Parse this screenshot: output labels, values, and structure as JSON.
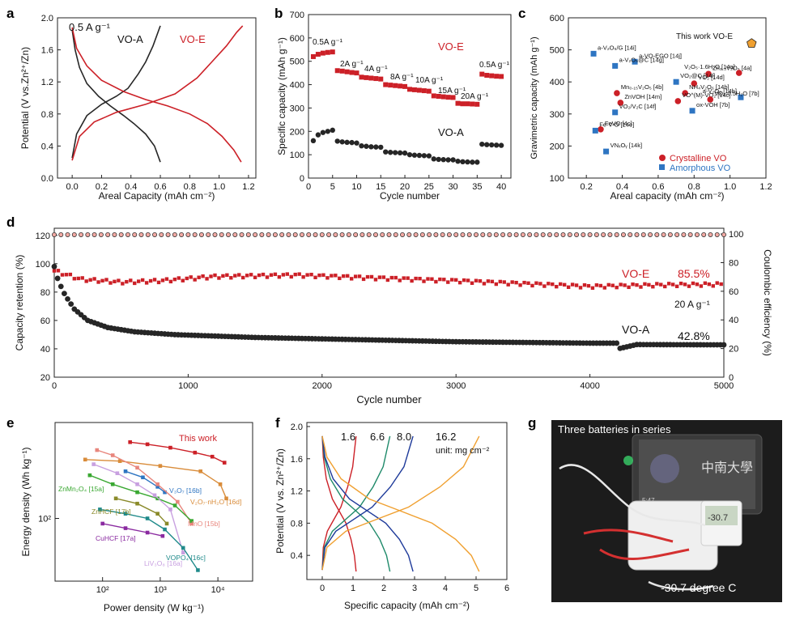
{
  "colors": {
    "red": "#cc2027",
    "black": "#262626",
    "blue": "#2e75c2",
    "pink": "#e8867d",
    "orange": "#f0a030"
  },
  "panels": {
    "a": "a",
    "b": "b",
    "c": "c",
    "d": "d",
    "e": "e",
    "f": "f",
    "g": "g"
  },
  "chart_data": [
    {
      "id": "a",
      "type": "line",
      "xlabel": "Areal Capacity (mAh cm⁻²)",
      "ylabel": "Potential (V vs.Zn²⁺/Zn)",
      "xlim": [
        -0.1,
        1.25
      ],
      "ylim": [
        0.0,
        2.0
      ],
      "xticks": [
        "0.0",
        "0.2",
        "0.4",
        "0.6",
        "0.8",
        "1.0",
        "1.2"
      ],
      "yticks": [
        "0.0",
        "0.4",
        "0.8",
        "1.2",
        "1.6",
        "2.0"
      ],
      "annotation": "0.5 A g⁻¹",
      "series": [
        {
          "name": "VO-A",
          "color": "#262626",
          "charge": [
            [
              0,
              0.25
            ],
            [
              0.03,
              0.55
            ],
            [
              0.1,
              0.78
            ],
            [
              0.2,
              0.92
            ],
            [
              0.3,
              1.02
            ],
            [
              0.38,
              1.12
            ],
            [
              0.45,
              1.3
            ],
            [
              0.5,
              1.45
            ],
            [
              0.55,
              1.65
            ],
            [
              0.6,
              1.9
            ]
          ],
          "discharge": [
            [
              0,
              1.85
            ],
            [
              0.02,
              1.6
            ],
            [
              0.05,
              1.38
            ],
            [
              0.1,
              1.18
            ],
            [
              0.18,
              1.02
            ],
            [
              0.26,
              0.9
            ],
            [
              0.35,
              0.78
            ],
            [
              0.42,
              0.68
            ],
            [
              0.5,
              0.55
            ],
            [
              0.56,
              0.4
            ],
            [
              0.6,
              0.2
            ]
          ]
        },
        {
          "name": "VO-E",
          "color": "#cc2027",
          "charge": [
            [
              0,
              0.22
            ],
            [
              0.05,
              0.52
            ],
            [
              0.15,
              0.7
            ],
            [
              0.3,
              0.82
            ],
            [
              0.5,
              0.92
            ],
            [
              0.7,
              1.05
            ],
            [
              0.85,
              1.25
            ],
            [
              0.95,
              1.45
            ],
            [
              1.05,
              1.65
            ],
            [
              1.12,
              1.82
            ],
            [
              1.16,
              1.9
            ]
          ],
          "discharge": [
            [
              0,
              1.88
            ],
            [
              0.03,
              1.62
            ],
            [
              0.1,
              1.4
            ],
            [
              0.2,
              1.22
            ],
            [
              0.35,
              1.08
            ],
            [
              0.5,
              0.98
            ],
            [
              0.65,
              0.9
            ],
            [
              0.8,
              0.8
            ],
            [
              0.92,
              0.68
            ],
            [
              1.02,
              0.52
            ],
            [
              1.1,
              0.35
            ],
            [
              1.15,
              0.2
            ]
          ]
        }
      ]
    },
    {
      "id": "b",
      "type": "scatter",
      "xlabel": "Cycle number",
      "ylabel": "Specific capacity (mAh g⁻¹)",
      "xlim": [
        0,
        42
      ],
      "ylim": [
        0,
        700
      ],
      "xticks": [
        "0",
        "5",
        "10",
        "15",
        "20",
        "25",
        "30",
        "35",
        "40"
      ],
      "yticks": [
        "0",
        "100",
        "200",
        "300",
        "400",
        "500",
        "600",
        "700"
      ],
      "rate_labels": [
        "0.5A g⁻¹",
        "2A g⁻¹",
        "4A g⁻¹",
        "8A g⁻¹",
        "10A g⁻¹",
        "15A g⁻¹",
        "20A g⁻¹",
        "0.5A g⁻¹"
      ],
      "series": [
        {
          "name": "VO-E",
          "color": "#cc2027",
          "marker": "square",
          "values": [
            520,
            530,
            535,
            538,
            540,
            460,
            458,
            455,
            452,
            450,
            432,
            430,
            428,
            426,
            424,
            400,
            398,
            396,
            394,
            392,
            380,
            378,
            376,
            374,
            372,
            352,
            350,
            348,
            346,
            345,
            320,
            318,
            318,
            317,
            316,
            445,
            440,
            438,
            436,
            435
          ]
        },
        {
          "name": "VO-A",
          "color": "#262626",
          "marker": "circle",
          "values": [
            160,
            185,
            195,
            200,
            205,
            158,
            155,
            153,
            152,
            150,
            138,
            136,
            134,
            133,
            132,
            112,
            110,
            109,
            108,
            107,
            100,
            98,
            97,
            96,
            95,
            82,
            80,
            79,
            78,
            78,
            72,
            70,
            69,
            68,
            68,
            145,
            143,
            142,
            141,
            140
          ]
        }
      ]
    },
    {
      "id": "c",
      "type": "scatter",
      "xlabel": "Areal capacity (mAh cm⁻²)",
      "ylabel": "Gravimetric capacity (mAh g⁻¹)",
      "xlim": [
        0.1,
        1.2
      ],
      "ylim": [
        100,
        600
      ],
      "xticks": [
        "0.2",
        "0.4",
        "0.6",
        "0.8",
        "1.0",
        "1.2"
      ],
      "yticks": [
        "100",
        "200",
        "300",
        "400",
        "500",
        "600"
      ],
      "legend": [
        "Crystalline VO",
        "Amorphous VO"
      ],
      "this_work": {
        "label": "This work VO-E",
        "x": 1.12,
        "y": 520
      },
      "points": [
        {
          "label": "a-V₂O₅/G [14i]",
          "x": 0.24,
          "y": 488,
          "kind": "amorphous"
        },
        {
          "label": "a-VO-EGO [14j]",
          "x": 0.47,
          "y": 463,
          "kind": "amorphous"
        },
        {
          "label": "a-V₂O₅@C [14g]",
          "x": 0.36,
          "y": 450,
          "kind": "amorphous"
        },
        {
          "label": "Zn₀.₃V₂O₅ [4a]",
          "x": 0.88,
          "y": 425,
          "kind": "crystalline"
        },
        {
          "label": "V₂O₅·1.6H₂O [14a]",
          "x": 1.05,
          "y": 428,
          "kind": "crystalline"
        },
        {
          "label": "VO₂@C [14l]",
          "x": 0.7,
          "y": 400,
          "kind": "amorphous"
        },
        {
          "label": "VO₂ [14d]",
          "x": 0.8,
          "y": 395,
          "kind": "crystalline"
        },
        {
          "label": "Mn₀.₁₅V₂O₅ [4b]",
          "x": 0.37,
          "y": 365,
          "kind": "crystalline"
        },
        {
          "label": "NH₄V₂O₆ [14b]",
          "x": 0.75,
          "y": 365,
          "kind": "crystalline"
        },
        {
          "label": "a-V₂O₅ [14h]",
          "x": 1.06,
          "y": 352,
          "kind": "amorphous"
        },
        {
          "label": "ZnVOH [14m]",
          "x": 0.39,
          "y": 335,
          "kind": "crystalline"
        },
        {
          "label": "VO^(M)-VO₂ [14c]",
          "x": 0.71,
          "y": 340,
          "kind": "crystalline"
        },
        {
          "label": "VO₂·0.5H₂O [7b]",
          "x": 0.89,
          "y": 345,
          "kind": "crystalline"
        },
        {
          "label": "VO₂/V₂C [14f]",
          "x": 0.36,
          "y": 305,
          "kind": "amorphous"
        },
        {
          "label": "ox-VOH [7b]",
          "x": 0.79,
          "y": 310,
          "kind": "amorphous"
        },
        {
          "label": "FeVO [4c]",
          "x": 0.28,
          "y": 252,
          "kind": "crystalline"
        },
        {
          "label": "Fe-V-O [14e]",
          "x": 0.25,
          "y": 248,
          "kind": "amorphous"
        },
        {
          "label": "VNₓOᵧ [14k]",
          "x": 0.31,
          "y": 183,
          "kind": "amorphous"
        }
      ]
    },
    {
      "id": "d",
      "type": "scatter",
      "xlabel": "Cycle number",
      "ylabel": "Capacity retention (%)",
      "y2label": "Coulombic efficiency (%)",
      "xlim": [
        0,
        5000
      ],
      "ylim": [
        20,
        125
      ],
      "y2lim": [
        0,
        104
      ],
      "xticks": [
        "0",
        "1000",
        "2000",
        "3000",
        "4000",
        "5000"
      ],
      "yticks": [
        "20",
        "40",
        "60",
        "80",
        "100",
        "120"
      ],
      "y2ticks": [
        "0",
        "20",
        "40",
        "60",
        "80",
        "100"
      ],
      "annotations": {
        "vo_e": "VO-E",
        "vo_e_pct": "85.5%",
        "rate": "20 A g⁻¹",
        "vo_a": "VO-A",
        "vo_a_pct": "42.8%"
      },
      "series": [
        {
          "name": "VO-E retention",
          "color": "#cc2027",
          "final": 85.5,
          "profile": [
            [
              0,
              95
            ],
            [
              200,
              89
            ],
            [
              500,
              87
            ],
            [
              800,
              88
            ],
            [
              1200,
              91
            ],
            [
              1800,
              92
            ],
            [
              2400,
              90
            ],
            [
              3000,
              88
            ],
            [
              3500,
              86
            ],
            [
              4000,
              84
            ],
            [
              4500,
              85
            ],
            [
              5000,
              85.5
            ]
          ]
        },
        {
          "name": "VO-A retention",
          "color": "#262626",
          "final": 42.8,
          "profile": [
            [
              0,
              98
            ],
            [
              30,
              88
            ],
            [
              80,
              78
            ],
            [
              150,
              68
            ],
            [
              250,
              60
            ],
            [
              400,
              55
            ],
            [
              600,
              52
            ],
            [
              900,
              50
            ],
            [
              1500,
              48
            ],
            [
              2000,
              47
            ],
            [
              3000,
              45
            ],
            [
              4000,
              44
            ],
            [
              4200,
              44
            ],
            [
              4210,
              40
            ],
            [
              4350,
              43
            ],
            [
              5000,
              42.8
            ]
          ]
        },
        {
          "name": "Coulombic efficiency",
          "color": "#262626",
          "value": 99.5
        }
      ]
    },
    {
      "id": "e",
      "type": "line",
      "xlabel": "Power density (W kg⁻¹)",
      "ylabel": "Energy density (Wh kg⁻¹)",
      "xscale": "log",
      "yscale": "log",
      "xlim": [
        15,
        40000
      ],
      "ylim": [
        28,
        700
      ],
      "xticks": [
        "100",
        "1000",
        "10000"
      ],
      "yticks": [
        "100"
      ],
      "series": [
        {
          "name": "This work",
          "color": "#cc2027",
          "points": [
            [
              300,
              470
            ],
            [
              600,
              450
            ],
            [
              1500,
              420
            ],
            [
              4000,
              380
            ],
            [
              8000,
              350
            ],
            [
              13000,
              310
            ]
          ]
        },
        {
          "name": "V₂O₇·nH₂O [16d]",
          "color": "#d98c3a",
          "points": [
            [
              50,
              330
            ],
            [
              200,
              320
            ],
            [
              1000,
              290
            ],
            [
              5000,
              260
            ],
            [
              11000,
              200
            ],
            [
              14000,
              150
            ]
          ]
        },
        {
          "name": "V₃O₇ [16b]",
          "color": "#2e75c2",
          "points": [
            [
              250,
              260
            ],
            [
              500,
              230
            ],
            [
              900,
              190
            ],
            [
              1200,
              170
            ]
          ]
        },
        {
          "name": "MnO [15b]",
          "color": "#e8867d",
          "points": [
            [
              80,
              400
            ],
            [
              150,
              360
            ],
            [
              400,
              280
            ],
            [
              900,
              200
            ],
            [
              2000,
              140
            ],
            [
              3500,
              90
            ]
          ]
        },
        {
          "name": "ZnMn₂O₄ [15a]",
          "color": "#3aa832",
          "points": [
            [
              60,
              240
            ],
            [
              150,
              200
            ],
            [
              400,
              170
            ],
            [
              900,
              150
            ],
            [
              1800,
              130
            ],
            [
              3500,
              95
            ]
          ]
        },
        {
          "name": "ZnHCF [17b]",
          "color": "#8a8a2a",
          "points": [
            [
              170,
              150
            ],
            [
              400,
              135
            ],
            [
              900,
              110
            ],
            [
              1300,
              90
            ]
          ]
        },
        {
          "name": "CuHCF [17a]",
          "color": "#8a2aa0",
          "points": [
            [
              100,
              90
            ],
            [
              250,
              82
            ],
            [
              600,
              75
            ],
            [
              1100,
              70
            ]
          ]
        },
        {
          "name": "LiV₃O₈ [16a]",
          "color": "#c8a0e0",
          "points": [
            [
              70,
              300
            ],
            [
              180,
              250
            ],
            [
              400,
              200
            ],
            [
              800,
              160
            ],
            [
              1500,
              120
            ],
            [
              2500,
              50
            ]
          ]
        },
        {
          "name": "VOPO₄ [16c]",
          "color": "#1f8a8a",
          "points": [
            [
              90,
              120
            ],
            [
              250,
              110
            ],
            [
              600,
              100
            ],
            [
              1200,
              80
            ],
            [
              2500,
              55
            ],
            [
              4500,
              35
            ]
          ]
        }
      ]
    },
    {
      "id": "f",
      "type": "line",
      "xlabel": "Specific capacity (mAh cm⁻²)",
      "ylabel": "Potential (V vs. Zn²⁺/Zn)",
      "xlim": [
        -0.5,
        6
      ],
      "ylim": [
        0.1,
        2.05
      ],
      "xticks": [
        "0",
        "1",
        "2",
        "3",
        "4",
        "5",
        "6"
      ],
      "yticks": [
        "0.4",
        "0.8",
        "1.2",
        "1.6",
        "2.0"
      ],
      "unit_label": "unit: mg cm⁻²",
      "series": [
        {
          "name": "1.6",
          "color": "#cc2027",
          "cap": 1.1
        },
        {
          "name": "6.6",
          "color": "#1f8a6a",
          "cap": 2.2
        },
        {
          "name": "8.0",
          "color": "#1e3a9a",
          "cap": 2.95
        },
        {
          "name": "16.2",
          "color": "#f0a030",
          "cap": 5.1
        }
      ]
    }
  ],
  "photo": {
    "caption": "Three batteries in series",
    "temperature": "-30.7 degree C",
    "screen_reading": "-30.7",
    "tablet_time": "5:47"
  }
}
